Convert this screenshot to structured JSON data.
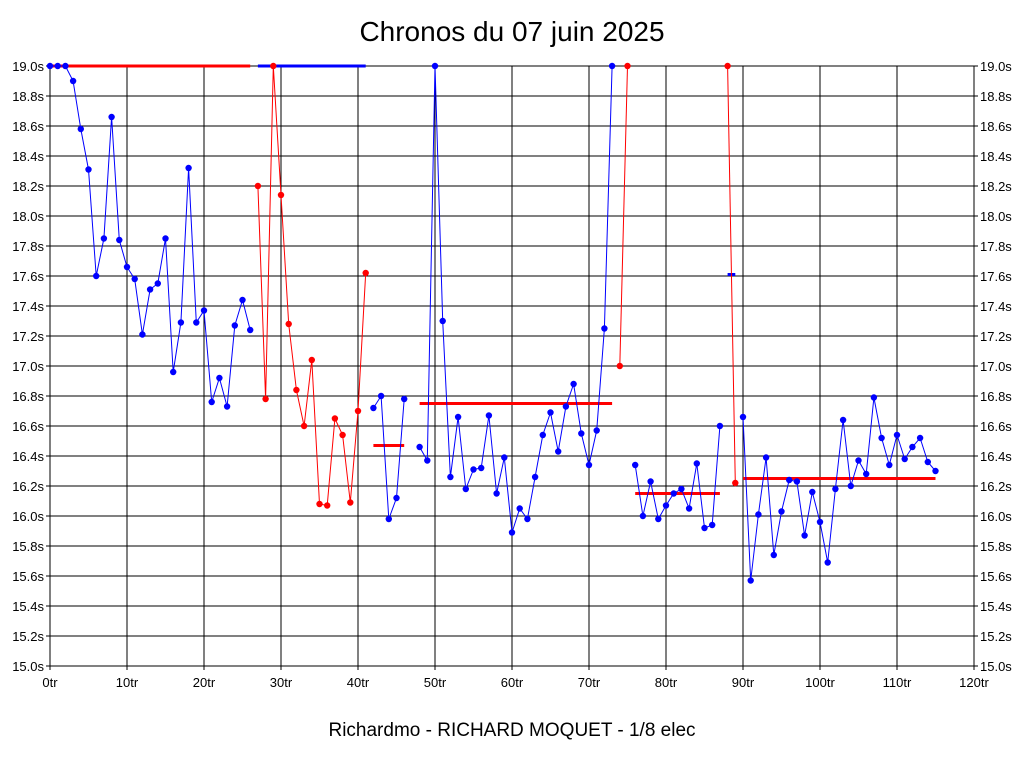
{
  "chart_data": {
    "type": "line",
    "title": "Chronos du 07 juin 2025",
    "caption": "Richardmo - RICHARD MOQUET - 1/8 elec",
    "xlabel": "",
    "ylabel": "",
    "xlim": [
      0,
      120
    ],
    "ylim": [
      15.0,
      19.0
    ],
    "grid": true,
    "x_ticks": [
      0,
      10,
      20,
      30,
      40,
      50,
      60,
      70,
      80,
      90,
      100,
      110,
      120
    ],
    "x_tick_labels": [
      "0tr",
      "10tr",
      "20tr",
      "30tr",
      "40tr",
      "50tr",
      "60tr",
      "70tr",
      "80tr",
      "90tr",
      "100tr",
      "110tr",
      "120tr"
    ],
    "y_ticks": [
      15.0,
      15.2,
      15.4,
      15.6,
      15.8,
      16.0,
      16.2,
      16.4,
      16.6,
      16.8,
      17.0,
      17.2,
      17.4,
      17.6,
      17.8,
      18.0,
      18.2,
      18.4,
      18.6,
      18.8,
      19.0
    ],
    "y_tick_labels": [
      "15.0s",
      "15.2s",
      "15.4s",
      "15.6s",
      "15.8s",
      "16.0s",
      "16.2s",
      "16.4s",
      "16.6s",
      "16.8s",
      "17.0s",
      "17.2s",
      "17.4s",
      "17.6s",
      "17.8s",
      "18.0s",
      "18.2s",
      "18.4s",
      "18.6s",
      "18.8s",
      "19.0s"
    ],
    "series": [
      {
        "color": "#0000ff",
        "x": [
          0,
          1,
          2,
          3,
          4,
          5,
          6,
          7,
          8,
          9,
          10,
          11,
          12,
          13,
          14,
          15,
          16,
          17,
          18,
          19,
          20,
          21,
          22,
          23,
          24,
          25,
          26
        ],
        "values": [
          19.0,
          19.0,
          19.0,
          18.9,
          18.58,
          18.31,
          17.6,
          17.85,
          18.66,
          17.84,
          17.66,
          17.58,
          17.21,
          17.51,
          17.55,
          17.85,
          16.96,
          17.29,
          18.32,
          17.29,
          17.37,
          16.76,
          16.92,
          16.73,
          17.27,
          17.44,
          17.24
        ]
      },
      {
        "color": "#ff0000",
        "x": [
          27,
          28,
          29,
          30,
          31,
          32,
          33,
          34,
          35,
          36,
          37,
          38,
          39,
          40,
          41
        ],
        "values": [
          18.2,
          16.78,
          19.0,
          18.14,
          17.28,
          16.84,
          16.6,
          17.04,
          16.08,
          16.07,
          16.65,
          16.54,
          16.09,
          16.7,
          17.62
        ]
      },
      {
        "color": "#0000ff",
        "x": [
          42,
          43,
          44,
          45,
          46,
          47,
          48,
          49,
          50,
          51,
          52,
          53,
          54,
          55,
          56,
          57,
          58,
          59,
          60,
          61,
          62,
          63,
          64,
          65,
          66,
          67,
          68,
          69,
          70,
          71,
          72,
          73
        ],
        "values": [
          16.72,
          16.8,
          15.98,
          16.12,
          16.78,
          null,
          16.46,
          16.37,
          19.0,
          17.3,
          16.26,
          16.66,
          16.18,
          16.31,
          16.32,
          16.67,
          16.15,
          16.39,
          15.89,
          16.05,
          15.98,
          16.26,
          16.54,
          16.69,
          16.43,
          16.73,
          16.88,
          16.55,
          16.34,
          16.57,
          17.25,
          19.0
        ]
      },
      {
        "color": "#ff0000",
        "x": [
          74,
          75
        ],
        "values": [
          17.0,
          19.0
        ]
      },
      {
        "color": "#0000ff",
        "x": [
          76,
          77,
          78,
          79,
          80,
          81,
          82,
          83,
          84,
          85,
          86,
          87
        ],
        "values": [
          16.34,
          16.0,
          16.23,
          15.98,
          16.07,
          16.15,
          16.18,
          16.05,
          16.35,
          15.92,
          15.94,
          16.6
        ]
      },
      {
        "color": "#ff0000",
        "x": [
          88,
          89
        ],
        "values": [
          19.0,
          16.22
        ]
      },
      {
        "color": "#0000ff",
        "x": [
          90,
          91,
          92,
          93,
          94,
          95,
          96,
          97,
          98,
          99,
          100,
          101,
          102,
          103,
          104,
          105,
          106,
          107,
          108,
          109,
          110,
          111,
          112,
          113,
          114,
          115
        ],
        "values": [
          16.66,
          15.57,
          16.01,
          16.39,
          15.74,
          16.03,
          16.24,
          16.23,
          15.87,
          16.16,
          15.96,
          15.69,
          16.18,
          16.64,
          16.2,
          16.37,
          16.28,
          16.79,
          16.52,
          16.34,
          16.54,
          16.38,
          16.46,
          16.52,
          16.36,
          16.3
        ]
      }
    ],
    "reference_lines": [
      {
        "color": "#ff0000",
        "x1": 0,
        "x2": 26,
        "y": 19.0
      },
      {
        "color": "#0000ff",
        "x1": 27,
        "x2": 41,
        "y": 19.0
      },
      {
        "color": "#ff0000",
        "x1": 42,
        "x2": 46,
        "y": 16.47
      },
      {
        "color": "#ff0000",
        "x1": 48,
        "x2": 73,
        "y": 16.75
      },
      {
        "color": "#ff0000",
        "x1": 76,
        "x2": 87,
        "y": 16.15
      },
      {
        "color": "#0000ff",
        "x1": 88,
        "x2": 89,
        "y": 17.61
      },
      {
        "color": "#ff0000",
        "x1": 90,
        "x2": 115,
        "y": 16.25
      }
    ]
  }
}
